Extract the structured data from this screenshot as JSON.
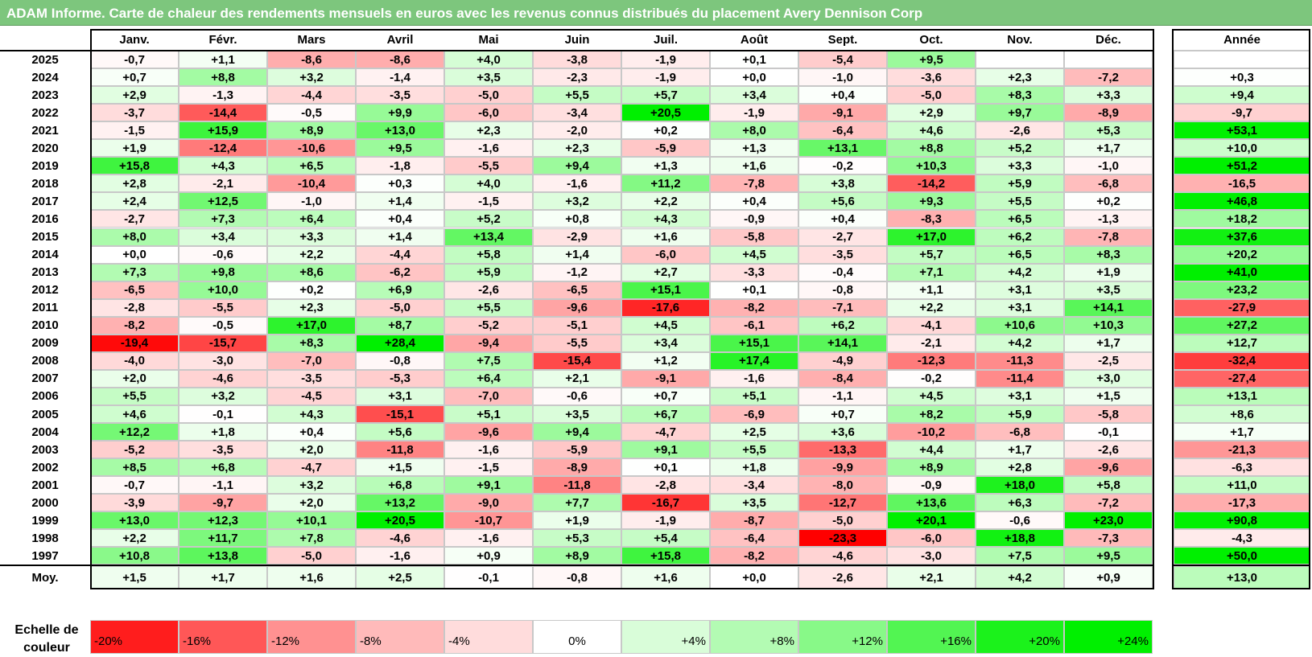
{
  "title": "ADAM Informe. Carte de chaleur des rendements mensuels en euros avec les revenus connus distribués du placement Avery Dennison Corp",
  "colors": {
    "title_bar": "#7dc67d",
    "positive_max": "#00ff00",
    "negative_max": "#ff0000",
    "neutral": "#ffffff"
  },
  "chart_data": {
    "type": "heatmap",
    "title": "ADAM Informe. Carte de chaleur des rendements mensuels en euros avec les revenus connus distribués du placement Avery Dennison Corp",
    "columns": [
      "Janv.",
      "Févr.",
      "Mars",
      "Avril",
      "Mai",
      "Juin",
      "Juil.",
      "Août",
      "Sept.",
      "Oct.",
      "Nov.",
      "Déc."
    ],
    "year_column_label": "Année",
    "average_row_label": "Moy.",
    "rows": [
      {
        "year": "2025",
        "months": [
          "-0,7",
          "+1,1",
          "-8,6",
          "-8,6",
          "+4,0",
          "-3,8",
          "-1,9",
          "+0,1",
          "-5,4",
          "+9,5",
          "",
          ""
        ],
        "annual": ""
      },
      {
        "year": "2024",
        "months": [
          "+0,7",
          "+8,8",
          "+3,2",
          "-1,4",
          "+3,5",
          "-2,3",
          "-1,9",
          "+0,0",
          "-1,0",
          "-3,6",
          "+2,3",
          "-7,2"
        ],
        "annual": "+0,3"
      },
      {
        "year": "2023",
        "months": [
          "+2,9",
          "-1,3",
          "-4,4",
          "-3,5",
          "-5,0",
          "+5,5",
          "+5,7",
          "+3,4",
          "+0,4",
          "-5,0",
          "+8,3",
          "+3,3"
        ],
        "annual": "+9,4"
      },
      {
        "year": "2022",
        "months": [
          "-3,7",
          "-14,4",
          "-0,5",
          "+9,9",
          "-6,0",
          "-3,4",
          "+20,5",
          "-1,9",
          "-9,1",
          "+2,9",
          "+9,7",
          "-8,9"
        ],
        "annual": "-9,7"
      },
      {
        "year": "2021",
        "months": [
          "-1,5",
          "+15,9",
          "+8,9",
          "+13,0",
          "+2,3",
          "-2,0",
          "+0,2",
          "+8,0",
          "-6,4",
          "+4,6",
          "-2,6",
          "+5,3"
        ],
        "annual": "+53,1"
      },
      {
        "year": "2020",
        "months": [
          "+1,9",
          "-12,4",
          "-10,6",
          "+9,5",
          "-1,6",
          "+2,3",
          "-5,9",
          "+1,3",
          "+13,1",
          "+8,8",
          "+5,2",
          "+1,7"
        ],
        "annual": "+10,0"
      },
      {
        "year": "2019",
        "months": [
          "+15,8",
          "+4,3",
          "+6,5",
          "-1,8",
          "-5,5",
          "+9,4",
          "+1,3",
          "+1,6",
          "-0,2",
          "+10,3",
          "+3,3",
          "-1,0"
        ],
        "annual": "+51,2"
      },
      {
        "year": "2018",
        "months": [
          "+2,8",
          "-2,1",
          "-10,4",
          "+0,3",
          "+4,0",
          "-1,6",
          "+11,2",
          "-7,8",
          "+3,8",
          "-14,2",
          "+5,9",
          "-6,8"
        ],
        "annual": "-16,5"
      },
      {
        "year": "2017",
        "months": [
          "+2,4",
          "+12,5",
          "-1,0",
          "+1,4",
          "-1,5",
          "+3,2",
          "+2,2",
          "+0,4",
          "+5,6",
          "+9,3",
          "+5,5",
          "+0,2"
        ],
        "annual": "+46,8"
      },
      {
        "year": "2016",
        "months": [
          "-2,7",
          "+7,3",
          "+6,4",
          "+0,4",
          "+5,2",
          "+0,8",
          "+4,3",
          "-0,9",
          "+0,4",
          "-8,3",
          "+6,5",
          "-1,3"
        ],
        "annual": "+18,2"
      },
      {
        "year": "2015",
        "months": [
          "+8,0",
          "+3,4",
          "+3,3",
          "+1,4",
          "+13,4",
          "-2,9",
          "+1,6",
          "-5,8",
          "-2,7",
          "+17,0",
          "+6,2",
          "-7,8"
        ],
        "annual": "+37,6"
      },
      {
        "year": "2014",
        "months": [
          "+0,0",
          "-0,6",
          "+2,2",
          "-4,4",
          "+5,8",
          "+1,4",
          "-6,0",
          "+4,5",
          "-3,5",
          "+5,7",
          "+6,5",
          "+8,3"
        ],
        "annual": "+20,2"
      },
      {
        "year": "2013",
        "months": [
          "+7,3",
          "+9,8",
          "+8,6",
          "-6,2",
          "+5,9",
          "-1,2",
          "+2,7",
          "-3,3",
          "-0,4",
          "+7,1",
          "+4,2",
          "+1,9"
        ],
        "annual": "+41,0"
      },
      {
        "year": "2012",
        "months": [
          "-6,5",
          "+10,0",
          "+0,2",
          "+6,9",
          "-2,6",
          "-6,5",
          "+15,1",
          "+0,1",
          "-0,8",
          "+1,1",
          "+3,1",
          "+3,5"
        ],
        "annual": "+23,2"
      },
      {
        "year": "2011",
        "months": [
          "-2,8",
          "-5,5",
          "+2,3",
          "-5,0",
          "+5,5",
          "-9,6",
          "-17,6",
          "-8,2",
          "-7,1",
          "+2,2",
          "+3,1",
          "+14,1"
        ],
        "annual": "-27,9"
      },
      {
        "year": "2010",
        "months": [
          "-8,2",
          "-0,5",
          "+17,0",
          "+8,7",
          "-5,2",
          "-5,1",
          "+4,5",
          "-6,1",
          "+6,2",
          "-4,1",
          "+10,6",
          "+10,3"
        ],
        "annual": "+27,2"
      },
      {
        "year": "2009",
        "months": [
          "-19,4",
          "-15,7",
          "+8,3",
          "+28,4",
          "-9,4",
          "-5,5",
          "+3,4",
          "+15,1",
          "+14,1",
          "-2,1",
          "+4,2",
          "+1,7"
        ],
        "annual": "+12,7"
      },
      {
        "year": "2008",
        "months": [
          "-4,0",
          "-3,0",
          "-7,0",
          "-0,8",
          "+7,5",
          "-15,4",
          "+1,2",
          "+17,4",
          "-4,9",
          "-12,3",
          "-11,3",
          "-2,5"
        ],
        "annual": "-32,4"
      },
      {
        "year": "2007",
        "months": [
          "+2,0",
          "-4,6",
          "-3,5",
          "-5,3",
          "+6,4",
          "+2,1",
          "-9,1",
          "-1,6",
          "-8,4",
          "-0,2",
          "-11,4",
          "+3,0"
        ],
        "annual": "-27,4"
      },
      {
        "year": "2006",
        "months": [
          "+5,5",
          "+3,2",
          "-4,5",
          "+3,1",
          "-7,0",
          "-0,6",
          "+0,7",
          "+5,1",
          "-1,1",
          "+4,5",
          "+3,1",
          "+1,5"
        ],
        "annual": "+13,1"
      },
      {
        "year": "2005",
        "months": [
          "+4,6",
          "-0,1",
          "+4,3",
          "-15,1",
          "+5,1",
          "+3,5",
          "+6,7",
          "-6,9",
          "+0,7",
          "+8,2",
          "+5,9",
          "-5,8"
        ],
        "annual": "+8,6"
      },
      {
        "year": "2004",
        "months": [
          "+12,2",
          "+1,8",
          "+0,4",
          "+5,6",
          "-9,6",
          "+9,4",
          "-4,7",
          "+2,5",
          "+3,6",
          "-10,2",
          "-6,8",
          "-0,1"
        ],
        "annual": "+1,7"
      },
      {
        "year": "2003",
        "months": [
          "-5,2",
          "-3,5",
          "+2,0",
          "-11,8",
          "-1,6",
          "-5,9",
          "+9,1",
          "+5,5",
          "-13,3",
          "+4,4",
          "+1,7",
          "-2,6"
        ],
        "annual": "-21,3"
      },
      {
        "year": "2002",
        "months": [
          "+8,5",
          "+6,8",
          "-4,7",
          "+1,5",
          "-1,5",
          "-8,9",
          "+0,1",
          "+1,8",
          "-9,9",
          "+8,9",
          "+2,8",
          "-9,6"
        ],
        "annual": "-6,3"
      },
      {
        "year": "2001",
        "months": [
          "-0,7",
          "-1,1",
          "+3,2",
          "+6,8",
          "+9,1",
          "-11,8",
          "-2,8",
          "-3,4",
          "-8,0",
          "-0,9",
          "+18,0",
          "+5,8"
        ],
        "annual": "+11,0"
      },
      {
        "year": "2000",
        "months": [
          "-3,9",
          "-9,7",
          "+2,0",
          "+13,2",
          "-9,0",
          "+7,7",
          "-16,7",
          "+3,5",
          "-12,7",
          "+13,6",
          "+6,3",
          "-7,2"
        ],
        "annual": "-17,3"
      },
      {
        "year": "1999",
        "months": [
          "+13,0",
          "+12,3",
          "+10,1",
          "+20,5",
          "-10,7",
          "+1,9",
          "-1,9",
          "-8,7",
          "-5,0",
          "+20,1",
          "-0,6",
          "+23,0"
        ],
        "annual": "+90,8"
      },
      {
        "year": "1998",
        "months": [
          "+2,2",
          "+11,7",
          "+7,8",
          "-4,6",
          "-1,6",
          "+5,3",
          "+5,4",
          "-6,4",
          "-23,3",
          "-6,0",
          "+18,8",
          "-7,3"
        ],
        "annual": "-4,3"
      },
      {
        "year": "1997",
        "months": [
          "+10,8",
          "+13,8",
          "-5,0",
          "-1,6",
          "+0,9",
          "+8,9",
          "+15,8",
          "-8,2",
          "-4,6",
          "-3,0",
          "+7,5",
          "+9,5"
        ],
        "annual": "+50,0"
      }
    ],
    "average": {
      "months": [
        "+1,5",
        "+1,7",
        "+1,6",
        "+2,5",
        "-0,1",
        "-0,8",
        "+1,6",
        "+0,0",
        "-2,6",
        "+2,1",
        "+4,2",
        "+0,9"
      ],
      "annual": "+13,0"
    },
    "color_scale": {
      "label": "Echelle de couleur",
      "steps": [
        "-20%",
        "-16%",
        "-12%",
        "-8%",
        "-4%",
        "0%",
        "+4%",
        "+8%",
        "+12%",
        "+16%",
        "+20%",
        "+24%"
      ]
    }
  }
}
